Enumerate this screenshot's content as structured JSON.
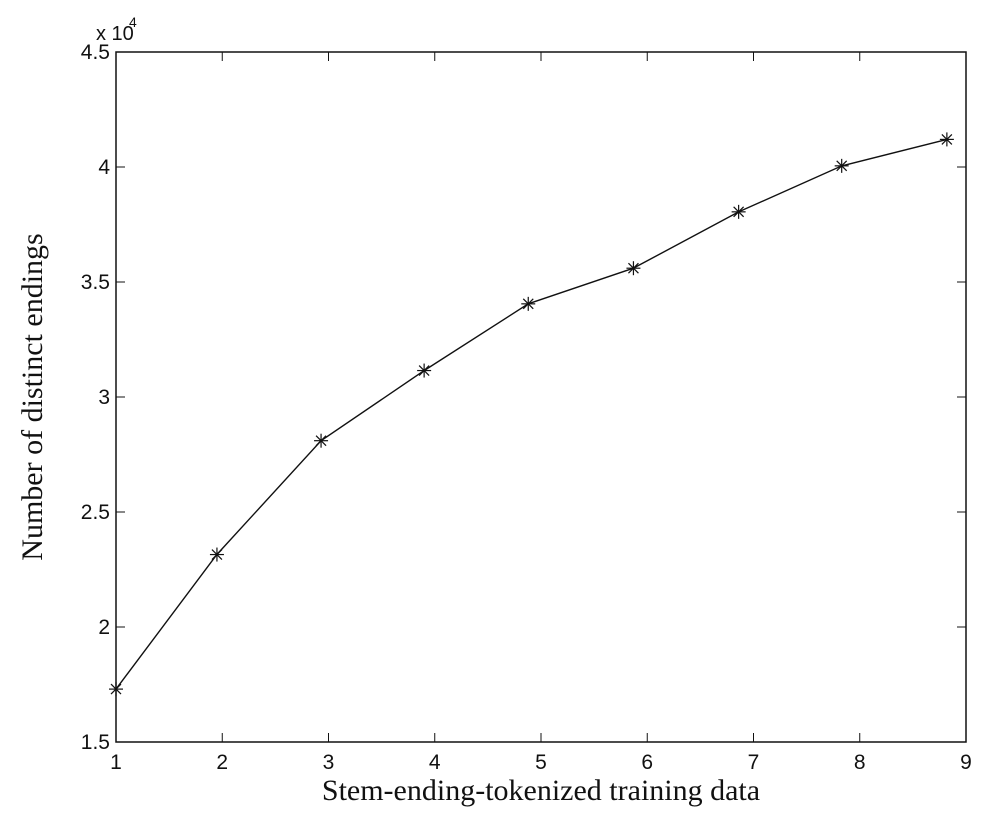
{
  "chart_data": {
    "type": "line",
    "x": [
      1,
      1.95,
      2.93,
      3.9,
      4.88,
      5.87,
      6.86,
      7.83,
      8.82
    ],
    "series": [
      {
        "values": [
          17300,
          23150,
          28100,
          31150,
          34050,
          35600,
          38050,
          40050,
          41200
        ],
        "marker": "asterisk",
        "color": "#111111"
      }
    ],
    "xlim": [
      1,
      9
    ],
    "ylim": [
      15000,
      45000
    ],
    "xticks": [
      1,
      2,
      3,
      4,
      5,
      6,
      7,
      8,
      9
    ],
    "xtick_labels": [
      "1",
      "2",
      "3",
      "4",
      "5",
      "6",
      "7",
      "8",
      "9"
    ],
    "yticks": [
      15000,
      20000,
      25000,
      30000,
      35000,
      40000,
      45000
    ],
    "ytick_labels": [
      "1.5",
      "2",
      "2.5",
      "3",
      "3.5",
      "4",
      "4.5"
    ],
    "y_scale_base": "x 10",
    "y_scale_exponent": "4",
    "xlabel": "Stem-ending-tokenized training data",
    "ylabel": "Number of distinct endings",
    "grid": false,
    "legend": "none"
  }
}
